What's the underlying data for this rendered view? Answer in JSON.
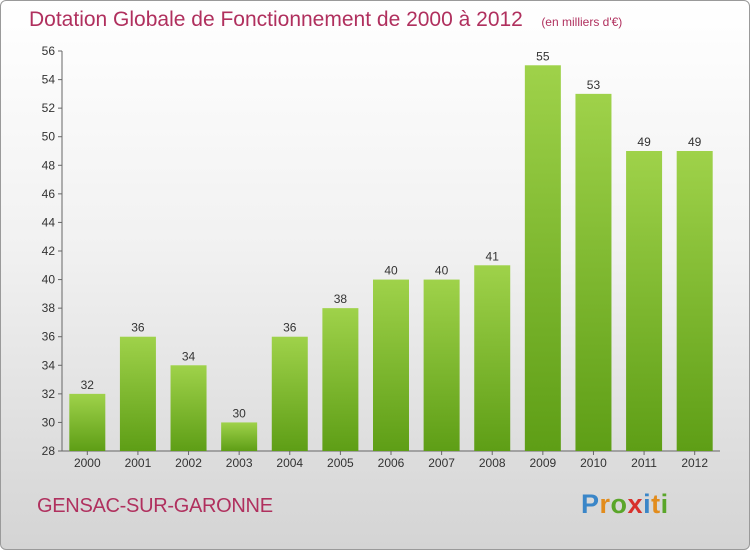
{
  "chart_data": {
    "type": "bar",
    "title": "Dotation Globale de Fonctionnement de 2000 à 2012",
    "subtitle": "(en milliers d'€)",
    "categories": [
      "2000",
      "2001",
      "2002",
      "2003",
      "2004",
      "2005",
      "2006",
      "2007",
      "2008",
      "2009",
      "2010",
      "2011",
      "2012"
    ],
    "values": [
      32,
      36,
      34,
      30,
      36,
      38,
      40,
      40,
      41,
      55,
      53,
      49,
      49
    ],
    "ylim": [
      28,
      56
    ],
    "yticks": [
      28,
      30,
      32,
      34,
      36,
      38,
      40,
      42,
      44,
      46,
      48,
      50,
      52,
      54,
      56
    ],
    "grid": false,
    "bar_color_top": "#9fd24a",
    "bar_color_bottom": "#5e9e16"
  },
  "footer": {
    "city": "GENSAC-SUR-GARONNE",
    "logo_letters": [
      "P",
      "r",
      "o",
      "x",
      "i",
      "t",
      "i"
    ],
    "logo_colors": [
      "#3a86c8",
      "#e28c1c",
      "#5aa62a",
      "#d8312c",
      "#3a86c8",
      "#e28c1c",
      "#5aa62a"
    ]
  },
  "colors": {
    "accent": "#b0305e",
    "axis": "#666666"
  }
}
